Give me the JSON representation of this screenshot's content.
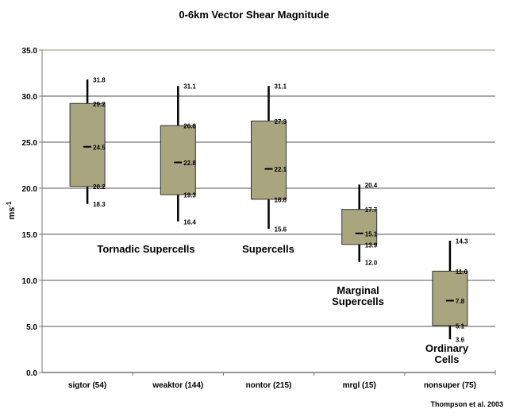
{
  "chart_data": {
    "type": "boxplot",
    "title": "0-6km Vector Shear Magnitude",
    "ylabel": "ms-1",
    "xlabel": "",
    "ylim": [
      0,
      35
    ],
    "yticks": [
      "0.0",
      "5.0",
      "10.0",
      "15.0",
      "20.0",
      "25.0",
      "30.0",
      "35.0"
    ],
    "grid": true,
    "categories": [
      "sigtor (54)",
      "weaktor (144)",
      "nontor (215)",
      "mrgl (15)",
      "nonsuper (75)"
    ],
    "boxes": [
      {
        "min": 18.3,
        "q1": 20.2,
        "median": 24.5,
        "q3": 29.2,
        "max": 31.8
      },
      {
        "min": 16.4,
        "q1": 19.3,
        "median": 22.8,
        "q3": 26.8,
        "max": 31.1
      },
      {
        "min": 15.6,
        "q1": 18.8,
        "median": 22.1,
        "q3": 27.3,
        "max": 31.1
      },
      {
        "min": 12.0,
        "q1": 13.9,
        "median": 15.1,
        "q3": 17.7,
        "max": 20.4
      },
      {
        "min": 3.6,
        "q1": 5.1,
        "median": 7.8,
        "q3": 11.0,
        "max": 14.3
      }
    ],
    "box_color": "#a9a67f",
    "annotations": [
      "Tornadic Supercells",
      "Supercells",
      "Marginal Supercells",
      "Ordinary Cells"
    ],
    "credit": "Thompson et al. 2003"
  }
}
